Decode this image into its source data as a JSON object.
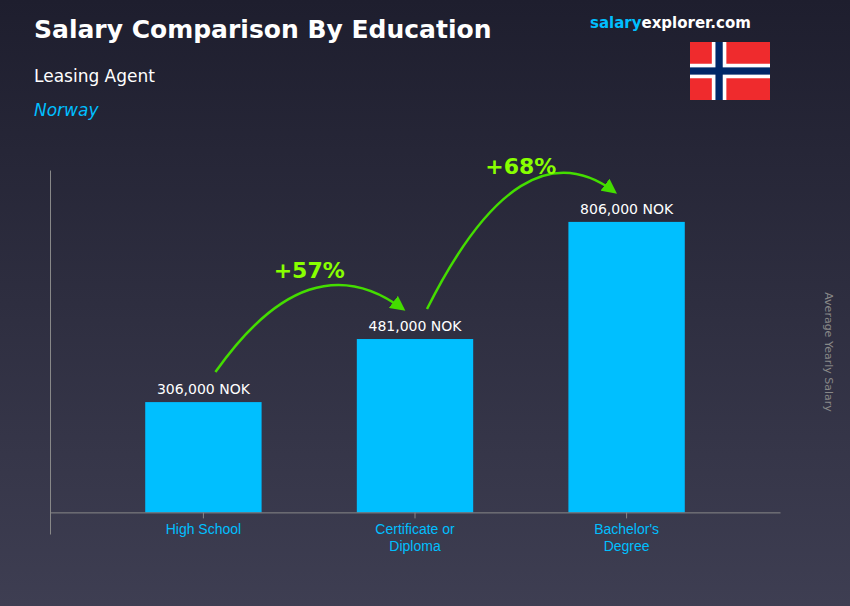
{
  "chart_data": {
    "type": "bar",
    "title": "Salary Comparison By Education",
    "subtitle": "Leasing Agent",
    "ylabel": "Average Yearly Salary",
    "annotations": [
      "Norway",
      "salary",
      "explorer.com",
      "+57%",
      "+68%"
    ],
    "categories": [
      "High School",
      "Certificate or\nDiploma",
      "Bachelor's\nDegree"
    ],
    "values": [
      306000,
      481000,
      806000
    ],
    "value_labels": [
      "306,000 NOK",
      "481,000 NOK",
      "806,000 NOK"
    ],
    "data_labels": true,
    "color": "#00BFFF",
    "ylim": [
      -60000,
      950000
    ],
    "tick_labels": "x",
    "grid": false
  }
}
